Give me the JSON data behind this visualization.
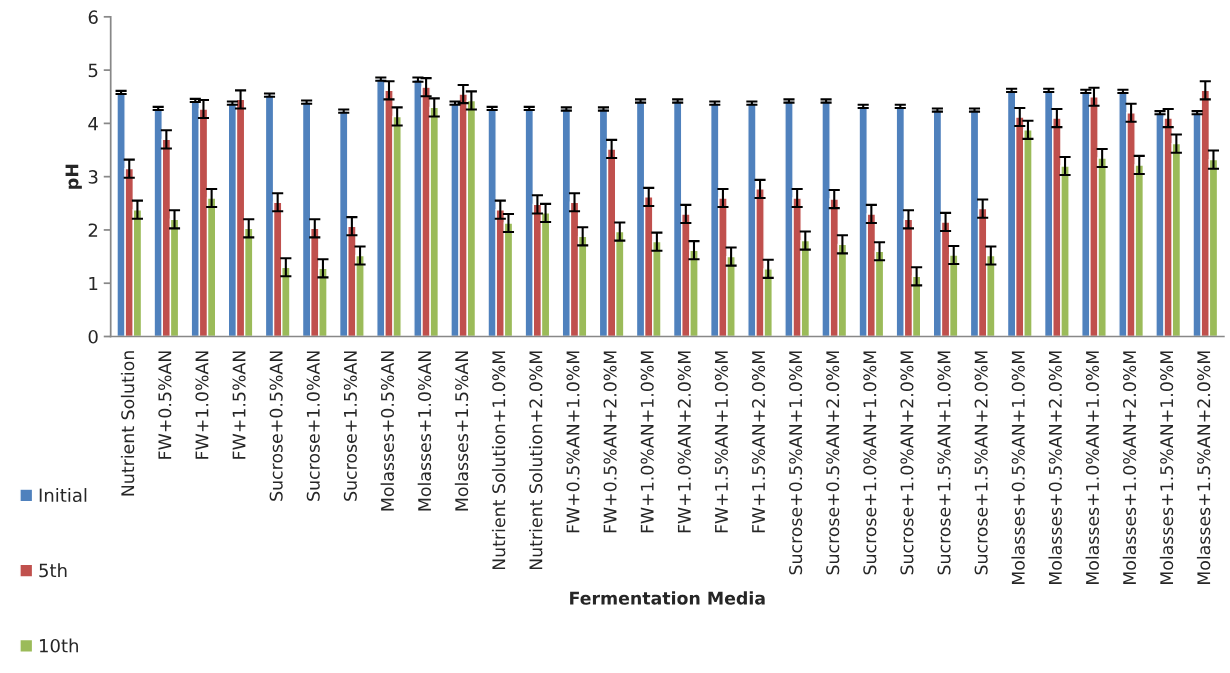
{
  "chart_data": {
    "type": "bar",
    "xlabel": "Fermentation Media",
    "ylabel": "pH",
    "categories": [
      "Nutrient Solution",
      "FW+0.5%AN",
      "FW+1.0%AN",
      "FW+1.5%AN",
      "Sucrose+0.5%AN",
      "Sucrose+1.0%AN",
      "Sucrose+1.5%AN",
      "Molasses+0.5%AN",
      "Molasses+1.0%AN",
      "Molasses+1.5%AN",
      "Nutrient Solution+1.0%M",
      "Nutrient Solution+2.0%M",
      "FW+0.5%AN+1.0%M",
      "FW+0.5%AN+2.0%M",
      "FW+1.0%AN+1.0%M",
      "FW+1.0%AN+2.0%M",
      "FW+1.5%AN+1.0%M",
      "FW+1.5%AN+2.0%M",
      "Sucrose+0.5%AN+1.0%M",
      "Sucrose+0.5%AN+2.0%M",
      "Sucrose+1.0%AN+1.0%M",
      "Sucrose+1.0%AN+2.0%M",
      "Sucrose+1.5%AN+1.0%M",
      "Sucrose+1.5%AN+2.0%M",
      "Molasses+0.5%AN+1.0%M",
      "Molasses+0.5%AN+2.0%M",
      "Molasses+1.0%AN+1.0%M",
      "Molasses+1.0%AN+2.0%M",
      "Molasses+1.5%AN+1.0%M",
      "Molasses+1.5%AN+2.0%M"
    ],
    "series": [
      {
        "name": "Initial",
        "color": "#4f81bd",
        "values": [
          4.58,
          4.28,
          4.43,
          4.38,
          4.53,
          4.4,
          4.23,
          4.83,
          4.82,
          4.38,
          4.28,
          4.28,
          4.27,
          4.27,
          4.42,
          4.42,
          4.38,
          4.38,
          4.42,
          4.42,
          4.32,
          4.32,
          4.25,
          4.25,
          4.62,
          4.62,
          4.6,
          4.6,
          4.2,
          4.2
        ],
        "errors": [
          0.03,
          0.03,
          0.03,
          0.03,
          0.03,
          0.03,
          0.03,
          0.03,
          0.04,
          0.03,
          0.03,
          0.03,
          0.03,
          0.03,
          0.03,
          0.03,
          0.03,
          0.03,
          0.03,
          0.03,
          0.03,
          0.03,
          0.03,
          0.03,
          0.03,
          0.03,
          0.03,
          0.03,
          0.03,
          0.03
        ]
      },
      {
        "name": "5th",
        "color": "#c0504d",
        "values": [
          3.15,
          3.7,
          4.27,
          4.45,
          2.52,
          2.03,
          2.07,
          4.62,
          4.68,
          4.55,
          2.38,
          2.48,
          2.52,
          3.52,
          2.62,
          2.3,
          2.6,
          2.77,
          2.6,
          2.58,
          2.3,
          2.2,
          2.15,
          2.4,
          4.12,
          4.1,
          4.5,
          4.2,
          4.1,
          4.62
        ],
        "errors": [
          0.17,
          0.17,
          0.17,
          0.17,
          0.17,
          0.17,
          0.17,
          0.17,
          0.17,
          0.17,
          0.17,
          0.17,
          0.17,
          0.17,
          0.17,
          0.17,
          0.17,
          0.17,
          0.17,
          0.17,
          0.17,
          0.17,
          0.17,
          0.17,
          0.17,
          0.17,
          0.17,
          0.17,
          0.17,
          0.17
        ]
      },
      {
        "name": "10th",
        "color": "#9bbb59",
        "values": [
          2.38,
          2.2,
          2.6,
          2.03,
          1.3,
          1.28,
          1.52,
          4.13,
          4.3,
          4.43,
          2.13,
          2.32,
          1.88,
          1.97,
          1.78,
          1.62,
          1.5,
          1.27,
          1.8,
          1.73,
          1.6,
          1.13,
          1.53,
          1.52,
          3.88,
          3.2,
          3.35,
          3.22,
          3.62,
          3.32
        ],
        "errors": [
          0.17,
          0.17,
          0.17,
          0.17,
          0.17,
          0.17,
          0.17,
          0.17,
          0.17,
          0.17,
          0.17,
          0.17,
          0.17,
          0.17,
          0.17,
          0.17,
          0.17,
          0.17,
          0.17,
          0.17,
          0.17,
          0.17,
          0.17,
          0.17,
          0.17,
          0.17,
          0.17,
          0.17,
          0.17,
          0.17
        ]
      }
    ],
    "ylim": [
      0,
      6
    ],
    "yticks": [
      0,
      1,
      2,
      3,
      4,
      5,
      6
    ],
    "grid": false,
    "legend": "left"
  }
}
